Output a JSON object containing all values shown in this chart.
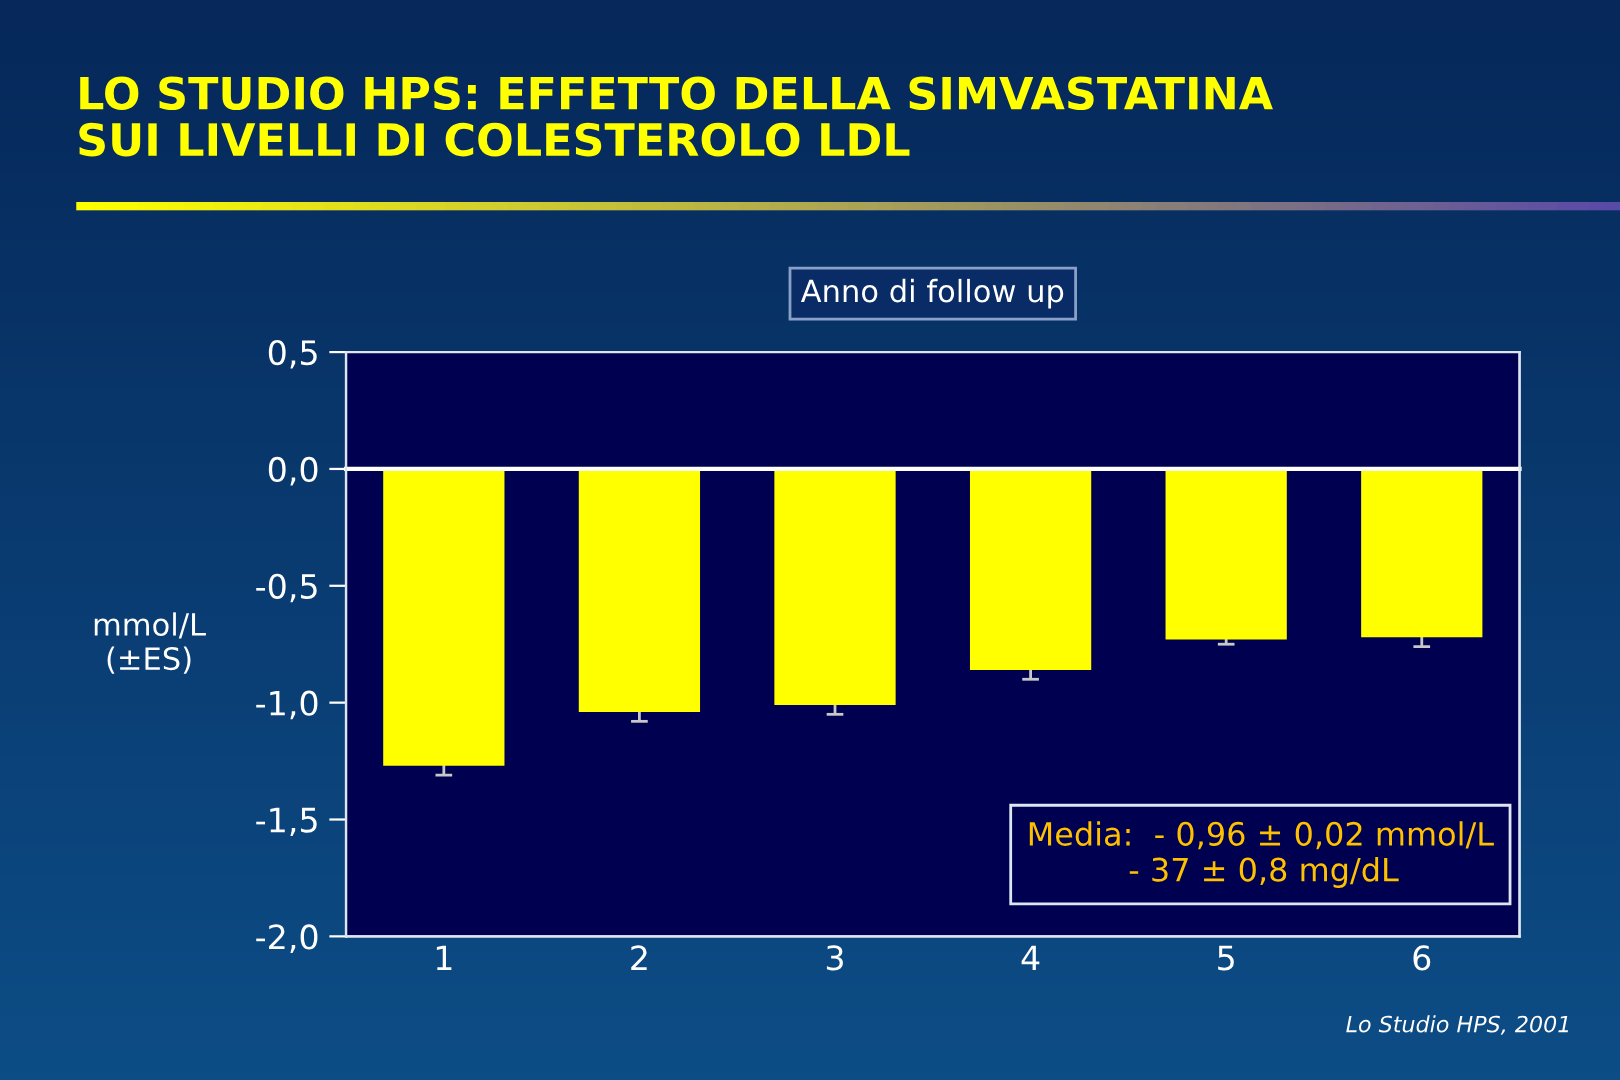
{
  "chart_data": {
    "type": "bar",
    "title": "LO STUDIO HPS: EFFETTO DELLA SIMVASTATINA\nSUI LIVELLI DI COLESTEROLO LDL",
    "xlabel": "Anno di follow up",
    "ylabel": "mmol/L\n(±ES)",
    "categories": [
      "1",
      "2",
      "3",
      "4",
      "5",
      "6"
    ],
    "values": [
      -1.27,
      -1.04,
      -1.01,
      -0.86,
      -0.73,
      -0.72
    ],
    "errors": [
      0.04,
      0.04,
      0.04,
      0.04,
      0.02,
      0.04
    ],
    "color": "#ffff00",
    "ylim": [
      -2.0,
      0.5
    ],
    "yticks": [
      {
        "value": -2.0,
        "label": "-2,0"
      },
      {
        "value": -1.5,
        "label": "-1,5"
      },
      {
        "value": -1.0,
        "label": "-1,0"
      },
      {
        "value": -0.5,
        "label": "-0,5"
      },
      {
        "value": 0.0,
        "label": "0,0"
      },
      {
        "value": 0.5,
        "label": "0,5"
      }
    ],
    "annotations": [
      "Media:  - 0,96 ± 0,02 mmol/L\n          - 37 ± 0,8 mg/dL",
      "Lo Studio HPS, 2001"
    ]
  }
}
